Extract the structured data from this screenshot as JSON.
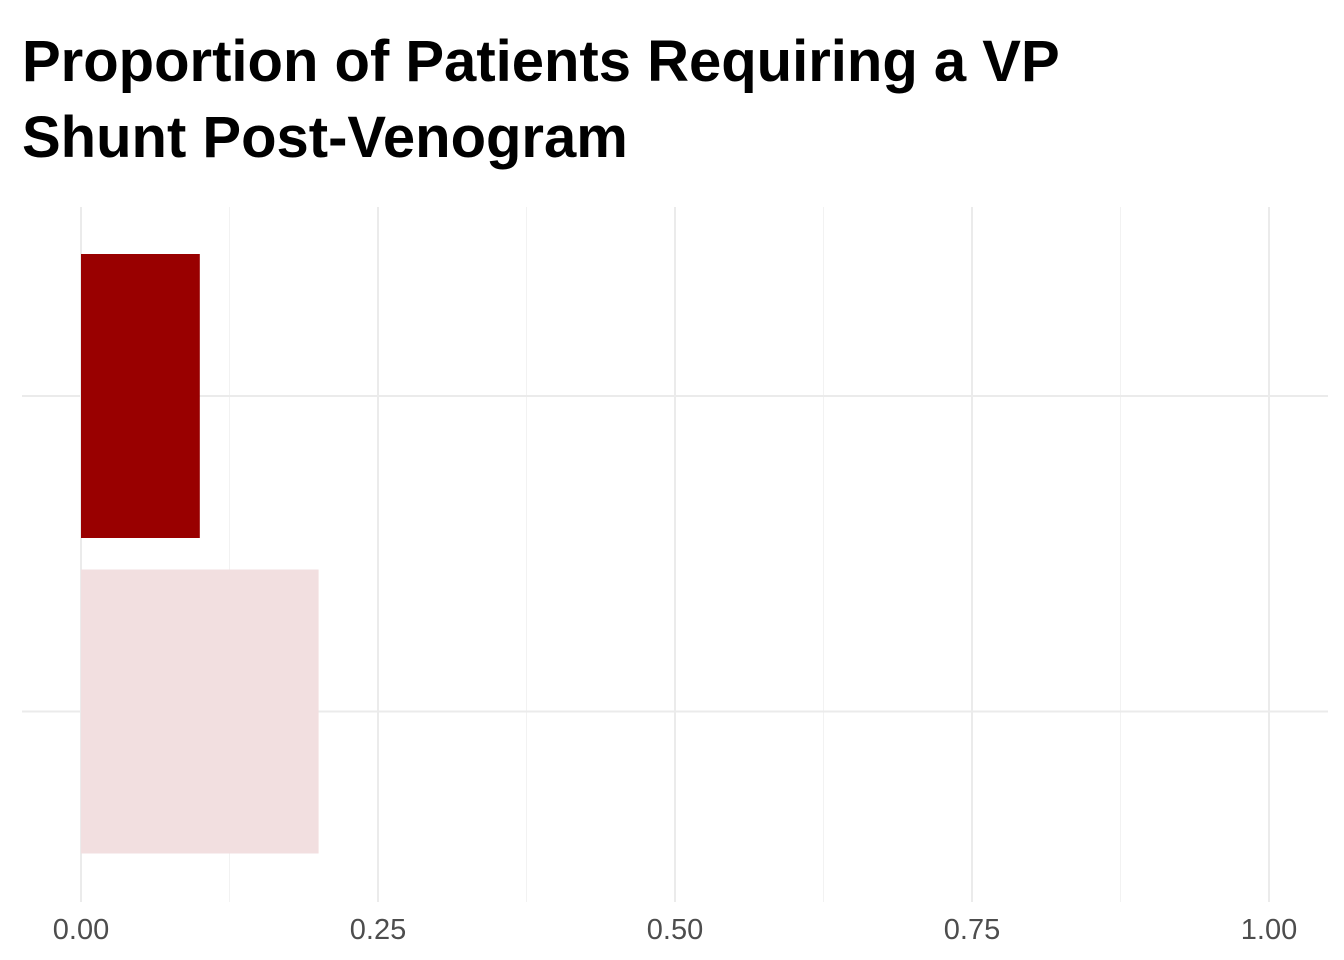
{
  "chart_data": {
    "type": "bar",
    "orientation": "horizontal",
    "title": "Proportion of Patients Requiring a VP Shunt Post-Venogram",
    "xlabel": "",
    "ylabel": "",
    "xlim": [
      0,
      1
    ],
    "x_ticks": [
      "0.00",
      "0.25",
      "0.50",
      "0.75",
      "1.00"
    ],
    "x_tick_values": [
      0,
      0.25,
      0.5,
      0.75,
      1.0
    ],
    "categories": [
      "",
      ""
    ],
    "values": [
      0.1,
      0.2
    ],
    "colors": [
      "#990000",
      "#f2dfe0"
    ],
    "grid": true,
    "legend": "none"
  }
}
